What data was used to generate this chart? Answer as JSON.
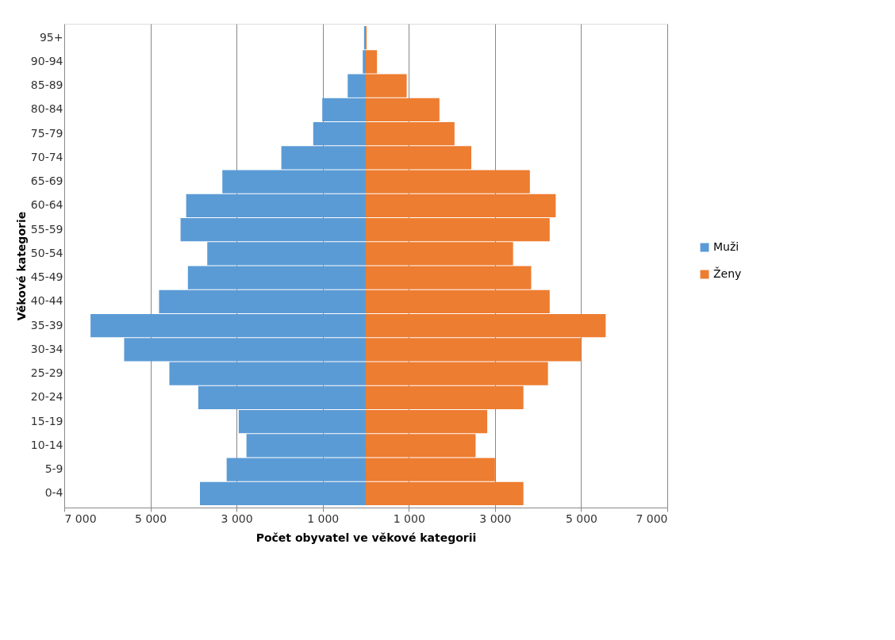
{
  "chart_data": {
    "type": "bar",
    "orientation": "horizontal",
    "xlabel": "Počet obyvatel ve věkové kategorii",
    "ylabel": "Věkové kategorie",
    "categories": [
      "95+",
      "90-94",
      "85-89",
      "80-84",
      "75-79",
      "70-74",
      "65-69",
      "60-64",
      "55-59",
      "50-54",
      "45-49",
      "40-44",
      "35-39",
      "30-34",
      "25-29",
      "20-24",
      "15-19",
      "10-14",
      "5-9",
      "0-4"
    ],
    "series": [
      {
        "name": "Muži",
        "color": "#5b9bd5",
        "values": [
          -40,
          -70,
          -420,
          -1010,
          -1220,
          -1960,
          -3330,
          -4170,
          -4300,
          -3680,
          -4130,
          -4800,
          -6390,
          -5610,
          -4560,
          -3890,
          -2950,
          -2770,
          -3230,
          -3850
        ]
      },
      {
        "name": "Ženy",
        "color": "#ed7d31",
        "values": [
          20,
          260,
          950,
          1710,
          2060,
          2450,
          3810,
          4410,
          4270,
          3420,
          3840,
          4270,
          5570,
          5000,
          4230,
          3660,
          2820,
          2550,
          3000,
          3660
        ]
      }
    ],
    "xlim": [
      -7000,
      7000
    ],
    "xticks": [
      {
        "value": -7000,
        "label": "7 000"
      },
      {
        "value": -5000,
        "label": "5 000"
      },
      {
        "value": -3000,
        "label": "3 000"
      },
      {
        "value": -1000,
        "label": "1 000"
      },
      {
        "value": 1000,
        "label": "1 000"
      },
      {
        "value": 3000,
        "label": "3 000"
      },
      {
        "value": 5000,
        "label": "5 000"
      },
      {
        "value": 7000,
        "label": "7 000"
      }
    ],
    "grid": "x",
    "legend": "right",
    "stacked": true
  }
}
